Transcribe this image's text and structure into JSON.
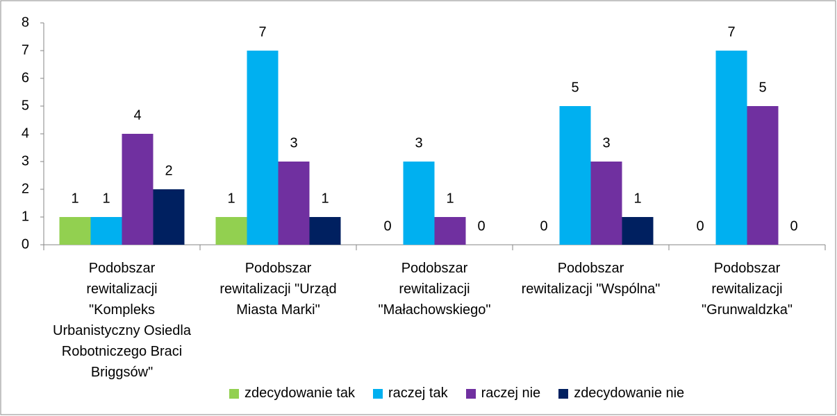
{
  "chart_data": {
    "type": "bar",
    "categories": [
      "Podobszar rewitalizacji \"Kompleks Urbanistyczny Osiedla Robotniczego Braci Briggsów\"",
      "Podobszar rewitalizacji \"Urząd Miasta Marki\"",
      "Podobszar rewitalizacji \"Małachowskiego\"",
      "Podobszar rewitalizacji \"Wspólna\"",
      "Podobszar rewitalizacji \"Grunwaldzka\""
    ],
    "series": [
      {
        "name": "zdecydowanie tak",
        "color": "#92d050",
        "values": [
          1,
          1,
          0,
          0,
          0
        ]
      },
      {
        "name": "raczej tak",
        "color": "#00b0f0",
        "values": [
          1,
          7,
          3,
          5,
          7
        ]
      },
      {
        "name": "raczej nie",
        "color": "#7030a0",
        "values": [
          4,
          3,
          1,
          3,
          5
        ]
      },
      {
        "name": "zdecydowanie nie",
        "color": "#002060",
        "values": [
          2,
          1,
          0,
          1,
          0
        ]
      }
    ],
    "ylim": [
      0,
      8
    ],
    "yticks": [
      0,
      1,
      2,
      3,
      4,
      5,
      6,
      7,
      8
    ],
    "legend": "bottom"
  }
}
